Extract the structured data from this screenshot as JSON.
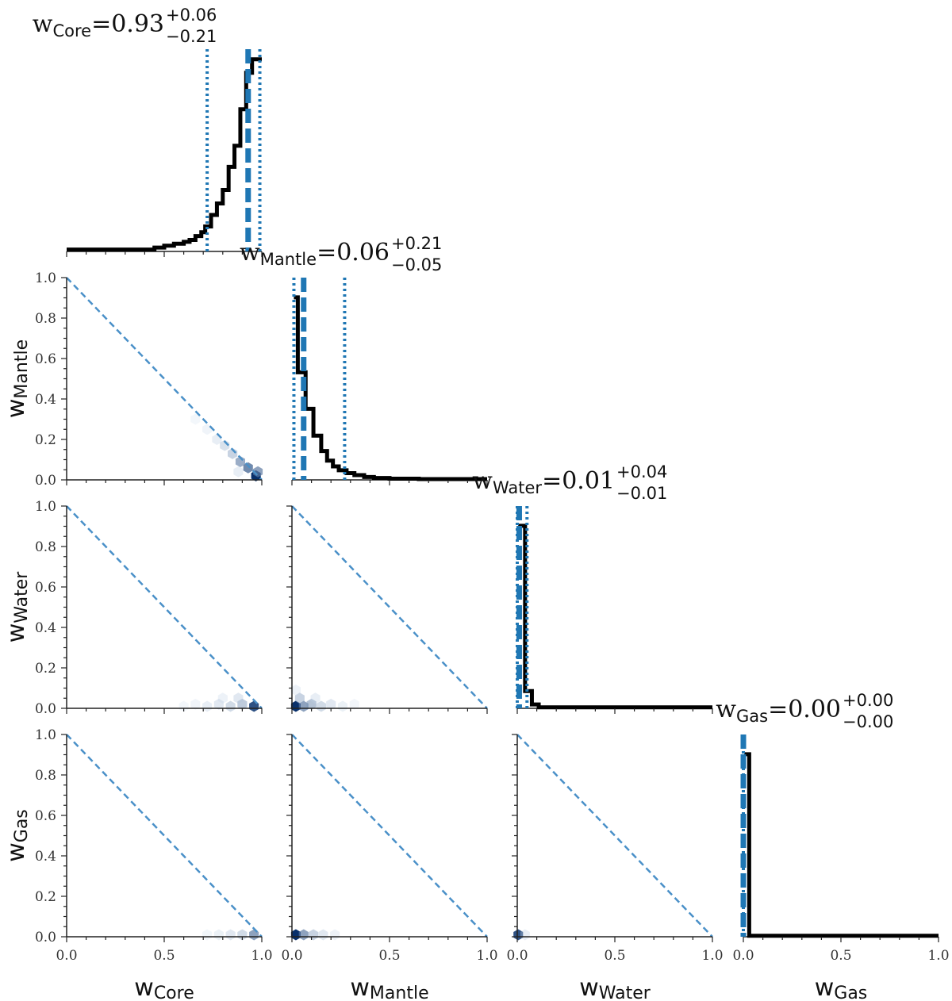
{
  "chart_data": {
    "type": "corner",
    "parameters": [
      {
        "main": "w",
        "sub": "Core"
      },
      {
        "main": "w",
        "sub": "Mantle"
      },
      {
        "main": "w",
        "sub": "Water"
      },
      {
        "main": "w",
        "sub": "Gas"
      }
    ],
    "axis_range": [
      0,
      1
    ],
    "x_ticks": [
      "0.0",
      "0.5",
      "1.0"
    ],
    "y_ticks": [
      "0.0",
      "0.2",
      "0.4",
      "0.6",
      "0.8",
      "1.0"
    ],
    "marginals": [
      {
        "title_value": "=0.93",
        "plus": "+0.06",
        "minus": "−0.21",
        "median": 0.93,
        "q16": 0.72,
        "q84": 0.99,
        "hist": [
          [
            0,
            0.01
          ],
          [
            0.25,
            0.01
          ],
          [
            0.45,
            0.02
          ],
          [
            0.5,
            0.03
          ],
          [
            0.55,
            0.04
          ],
          [
            0.6,
            0.05
          ],
          [
            0.63,
            0.06
          ],
          [
            0.66,
            0.08
          ],
          [
            0.69,
            0.1
          ],
          [
            0.71,
            0.13
          ],
          [
            0.74,
            0.19
          ],
          [
            0.77,
            0.25
          ],
          [
            0.8,
            0.32
          ],
          [
            0.83,
            0.44
          ],
          [
            0.86,
            0.55
          ],
          [
            0.89,
            0.74
          ],
          [
            0.92,
            0.93
          ],
          [
            0.95,
            1.0
          ],
          [
            0.98,
            1.0
          ]
        ]
      },
      {
        "title_value": "=0.06",
        "plus": "+0.21",
        "minus": "−0.05",
        "median": 0.06,
        "q16": 0.01,
        "q84": 0.27,
        "hist": [
          [
            0.01,
            0.95
          ],
          [
            0.03,
            0.56
          ],
          [
            0.07,
            0.37
          ],
          [
            0.11,
            0.23
          ],
          [
            0.15,
            0.15
          ],
          [
            0.18,
            0.1
          ],
          [
            0.21,
            0.07
          ],
          [
            0.24,
            0.05
          ],
          [
            0.28,
            0.035
          ],
          [
            0.32,
            0.025
          ],
          [
            0.37,
            0.015
          ],
          [
            0.42,
            0.01
          ],
          [
            0.5,
            0.006
          ],
          [
            0.65,
            0.004
          ]
        ]
      },
      {
        "title_value": "=0.01",
        "plus": "+0.04",
        "minus": "−0.01",
        "median": 0.01,
        "q16": 0.0,
        "q84": 0.05,
        "hist": [
          [
            0.005,
            0.95
          ],
          [
            0.04,
            0.09
          ],
          [
            0.075,
            0.02
          ],
          [
            0.11,
            0.005
          ]
        ]
      },
      {
        "title_value": "=0.00",
        "plus": "+0.00",
        "minus": "−0.00",
        "median": 0.0,
        "q16": 0.0,
        "q84": 0.0,
        "hist": [
          [
            0.005,
            0.95
          ],
          [
            0.03,
            0.005
          ]
        ]
      }
    ],
    "hexbin": [
      {
        "row": 1,
        "col": 0,
        "points": [
          [
            0.97,
            0.02,
            1.0
          ],
          [
            0.93,
            0.06,
            0.7
          ],
          [
            0.89,
            0.09,
            0.55
          ],
          [
            0.85,
            0.13,
            0.35
          ],
          [
            0.81,
            0.17,
            0.25
          ],
          [
            0.77,
            0.2,
            0.15
          ],
          [
            0.72,
            0.25,
            0.08
          ],
          [
            0.66,
            0.3,
            0.04
          ],
          [
            0.98,
            0.04,
            0.6
          ],
          [
            0.88,
            0.04,
            0.15
          ]
        ]
      },
      {
        "row": 2,
        "col": 0,
        "points": [
          [
            0.96,
            0.01,
            0.9
          ],
          [
            0.9,
            0.02,
            0.4
          ],
          [
            0.84,
            0.01,
            0.3
          ],
          [
            0.78,
            0.02,
            0.2
          ],
          [
            0.72,
            0.01,
            0.15
          ],
          [
            0.66,
            0.02,
            0.08
          ],
          [
            0.6,
            0.01,
            0.04
          ],
          [
            0.88,
            0.05,
            0.2
          ],
          [
            0.8,
            0.05,
            0.1
          ]
        ]
      },
      {
        "row": 2,
        "col": 1,
        "points": [
          [
            0.02,
            0.01,
            1.0
          ],
          [
            0.06,
            0.01,
            0.6
          ],
          [
            0.1,
            0.02,
            0.45
          ],
          [
            0.15,
            0.01,
            0.3
          ],
          [
            0.2,
            0.02,
            0.2
          ],
          [
            0.26,
            0.01,
            0.12
          ],
          [
            0.32,
            0.02,
            0.07
          ],
          [
            0.04,
            0.05,
            0.35
          ],
          [
            0.12,
            0.05,
            0.15
          ],
          [
            0.02,
            0.09,
            0.1
          ]
        ]
      },
      {
        "row": 3,
        "col": 0,
        "points": [
          [
            0.96,
            0.01,
            0.6
          ],
          [
            0.9,
            0.01,
            0.3
          ],
          [
            0.84,
            0.01,
            0.2
          ],
          [
            0.78,
            0.01,
            0.12
          ],
          [
            0.72,
            0.01,
            0.06
          ]
        ]
      },
      {
        "row": 3,
        "col": 1,
        "points": [
          [
            0.02,
            0.01,
            1.0
          ],
          [
            0.06,
            0.01,
            0.6
          ],
          [
            0.11,
            0.01,
            0.35
          ],
          [
            0.16,
            0.01,
            0.2
          ],
          [
            0.22,
            0.01,
            0.1
          ]
        ]
      },
      {
        "row": 3,
        "col": 2,
        "points": [
          [
            0.005,
            0.01,
            0.9
          ],
          [
            0.04,
            0.01,
            0.15
          ]
        ]
      }
    ],
    "colors": {
      "hist_line": "#000000",
      "quantile_line": "#1f77b4",
      "diagonal": "#4a90c8",
      "hex_dark": "#08306b",
      "hex_light": "#deebf7"
    }
  }
}
